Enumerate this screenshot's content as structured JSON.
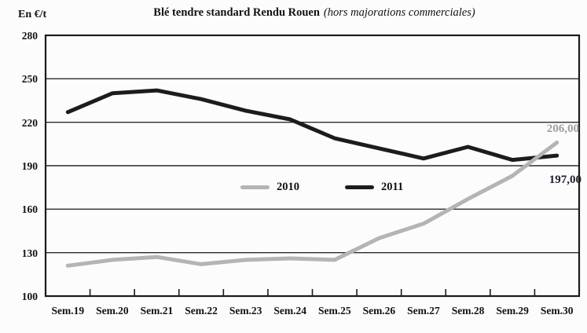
{
  "chart_data": {
    "type": "line",
    "title": "Blé tendre standard Rendu Rouen (hors majorations commerciales)",
    "title_main": "Blé tendre standard Rendu Rouen",
    "title_note": "(hors majorations commerciales)",
    "ylabel": "En €/t",
    "ylim": [
      100,
      280
    ],
    "yticks": [
      280,
      250,
      220,
      190,
      160,
      130,
      100
    ],
    "grid": true,
    "legend_position": "inside-center",
    "categories": [
      "Sem.19",
      "Sem.20",
      "Sem.21",
      "Sem.22",
      "Sem.23",
      "Sem.24",
      "Sem.25",
      "Sem.26",
      "Sem.27",
      "Sem.28",
      "Sem.29",
      "Sem.30"
    ],
    "series": [
      {
        "name": "2010",
        "color": "#b4b4b4",
        "values": [
          121,
          125,
          127,
          122,
          125,
          126,
          125,
          140,
          150,
          167,
          183,
          206
        ],
        "end_label": "206,00",
        "end_label_color": "#9e9e9e"
      },
      {
        "name": "2011",
        "color": "#1c1c1c",
        "values": [
          227,
          240,
          242,
          236,
          228,
          222,
          209,
          202,
          195,
          203,
          194,
          197
        ],
        "end_label": "197,00",
        "end_label_color": "#20202c"
      }
    ],
    "axis_color": "#1b1b1b",
    "grid_color": "#2b2b2b"
  }
}
